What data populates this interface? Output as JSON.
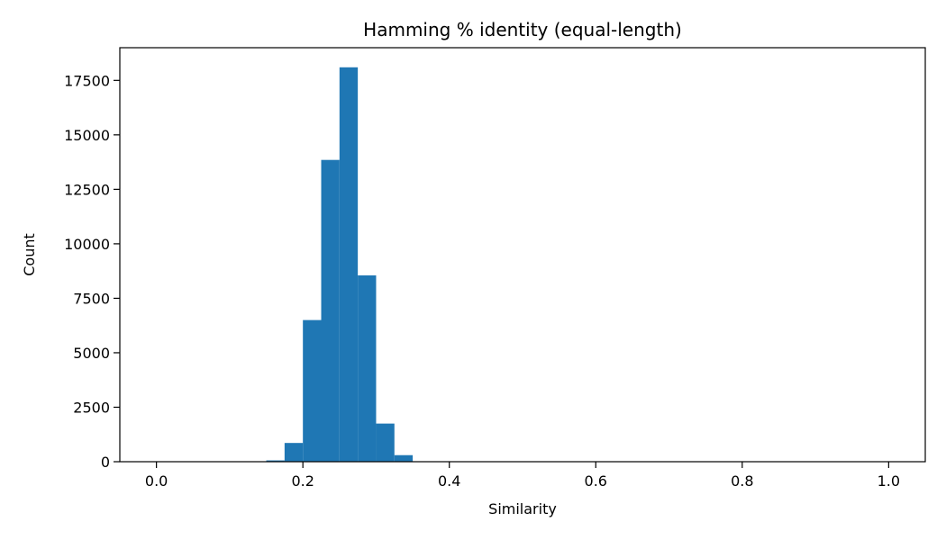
{
  "chart_data": {
    "type": "bar",
    "title": "Hamming % identity (equal-length)",
    "xlabel": "Similarity",
    "ylabel": "Count",
    "xlim": [
      -0.05,
      1.05
    ],
    "ylim": [
      0,
      19000
    ],
    "xticks": [
      0.0,
      0.2,
      0.4,
      0.6,
      0.8,
      1.0
    ],
    "xtick_labels": [
      "0.0",
      "0.2",
      "0.4",
      "0.6",
      "0.8",
      "1.0"
    ],
    "yticks": [
      0,
      2500,
      5000,
      7500,
      10000,
      12500,
      15000,
      17500
    ],
    "ytick_labels": [
      "0",
      "2500",
      "5000",
      "7500",
      "10000",
      "12500",
      "15000",
      "17500"
    ],
    "bar_color": "#1f77b4",
    "grid": false,
    "bins": [
      {
        "x0": 0.15,
        "x1": 0.175,
        "count": 60
      },
      {
        "x0": 0.175,
        "x1": 0.2,
        "count": 860
      },
      {
        "x0": 0.2,
        "x1": 0.225,
        "count": 6500
      },
      {
        "x0": 0.225,
        "x1": 0.25,
        "count": 13850
      },
      {
        "x0": 0.25,
        "x1": 0.275,
        "count": 18100
      },
      {
        "x0": 0.275,
        "x1": 0.3,
        "count": 8550
      },
      {
        "x0": 0.3,
        "x1": 0.325,
        "count": 1750
      },
      {
        "x0": 0.325,
        "x1": 0.35,
        "count": 300
      },
      {
        "x0": 0.35,
        "x1": 0.375,
        "count": 20
      }
    ]
  }
}
